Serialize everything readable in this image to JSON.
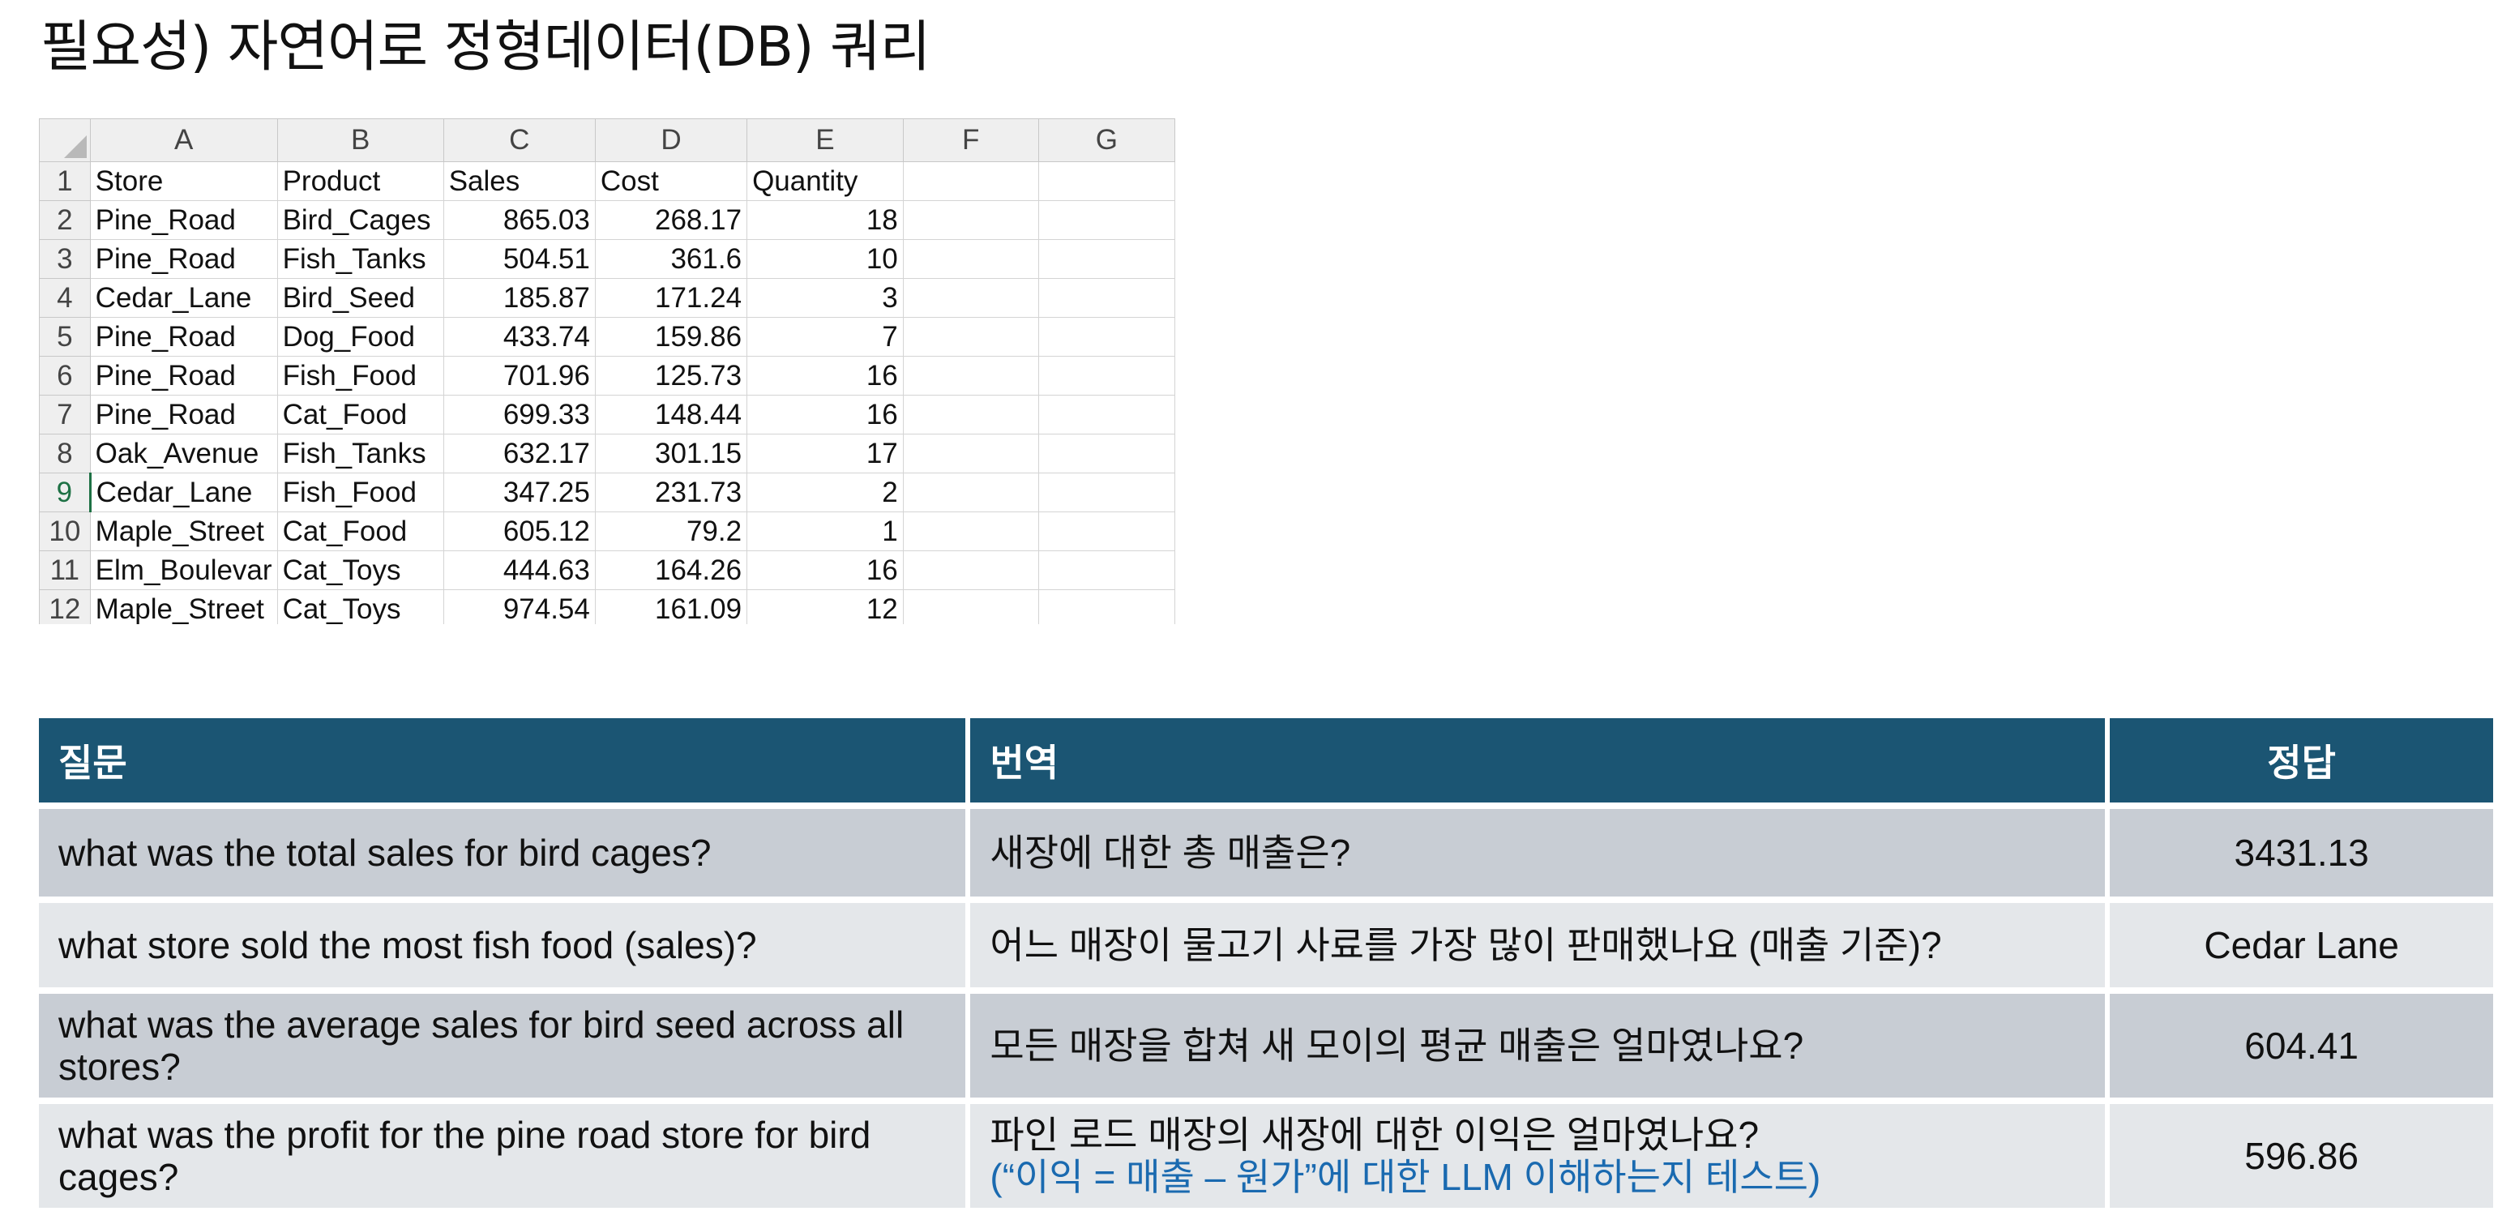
{
  "title": "필요성) 자연어로 정형데이터(DB) 쿼리",
  "spreadsheet": {
    "column_letters": [
      "A",
      "B",
      "C",
      "D",
      "E",
      "F",
      "G"
    ],
    "active_row": 9,
    "rows": [
      {
        "num": "1",
        "cells": [
          "Store",
          "Product",
          "Sales",
          "Cost",
          "Quantity",
          "",
          ""
        ]
      },
      {
        "num": "2",
        "cells": [
          "Pine_Road",
          "Bird_Cages",
          "865.03",
          "268.17",
          "18",
          "",
          ""
        ]
      },
      {
        "num": "3",
        "cells": [
          "Pine_Road",
          "Fish_Tanks",
          "504.51",
          "361.6",
          "10",
          "",
          ""
        ]
      },
      {
        "num": "4",
        "cells": [
          "Cedar_Lane",
          "Bird_Seed",
          "185.87",
          "171.24",
          "3",
          "",
          ""
        ]
      },
      {
        "num": "5",
        "cells": [
          "Pine_Road",
          "Dog_Food",
          "433.74",
          "159.86",
          "7",
          "",
          ""
        ]
      },
      {
        "num": "6",
        "cells": [
          "Pine_Road",
          "Fish_Food",
          "701.96",
          "125.73",
          "16",
          "",
          ""
        ]
      },
      {
        "num": "7",
        "cells": [
          "Pine_Road",
          "Cat_Food",
          "699.33",
          "148.44",
          "16",
          "",
          ""
        ]
      },
      {
        "num": "8",
        "cells": [
          "Oak_Avenue",
          "Fish_Tanks",
          "632.17",
          "301.15",
          "17",
          "",
          ""
        ]
      },
      {
        "num": "9",
        "cells": [
          "Cedar_Lane",
          "Fish_Food",
          "347.25",
          "231.73",
          "2",
          "",
          ""
        ]
      },
      {
        "num": "10",
        "cells": [
          "Maple_Street",
          "Cat_Food",
          "605.12",
          "79.2",
          "1",
          "",
          ""
        ]
      },
      {
        "num": "11",
        "cells": [
          "Elm_Boulevar",
          "Cat_Toys",
          "444.63",
          "164.26",
          "16",
          "",
          ""
        ]
      },
      {
        "num": "12",
        "cells": [
          "Maple_Street",
          "Cat_Toys",
          "974.54",
          "161.09",
          "12",
          "",
          ""
        ]
      }
    ]
  },
  "qa_table": {
    "headers": {
      "question": "질문",
      "translation": "번역",
      "answer": "정답"
    },
    "rows": [
      {
        "question": "what was the total sales for bird cages?",
        "translation": "새장에 대한 총 매출은?",
        "note": "",
        "answer": "3431.13"
      },
      {
        "question": "what store sold the most fish food (sales)?",
        "translation": "어느 매장이 물고기 사료를 가장 많이 판매했나요 (매출 기준)?",
        "note": "",
        "answer": "Cedar Lane"
      },
      {
        "question": "what was the average sales for bird seed across all stores?",
        "translation": "모든 매장을 합쳐 새 모이의 평균 매출은 얼마였나요?",
        "note": "",
        "answer": "604.41"
      },
      {
        "question": "what was the profit for the pine road store for bird cages?",
        "translation": "파인 로드 매장의 새장에 대한 이익은 얼마였나요?",
        "note": "(“이익 = 매출 – 원가”에 대한 LLM 이해하는지 테스트)",
        "answer": "596.86"
      }
    ]
  }
}
